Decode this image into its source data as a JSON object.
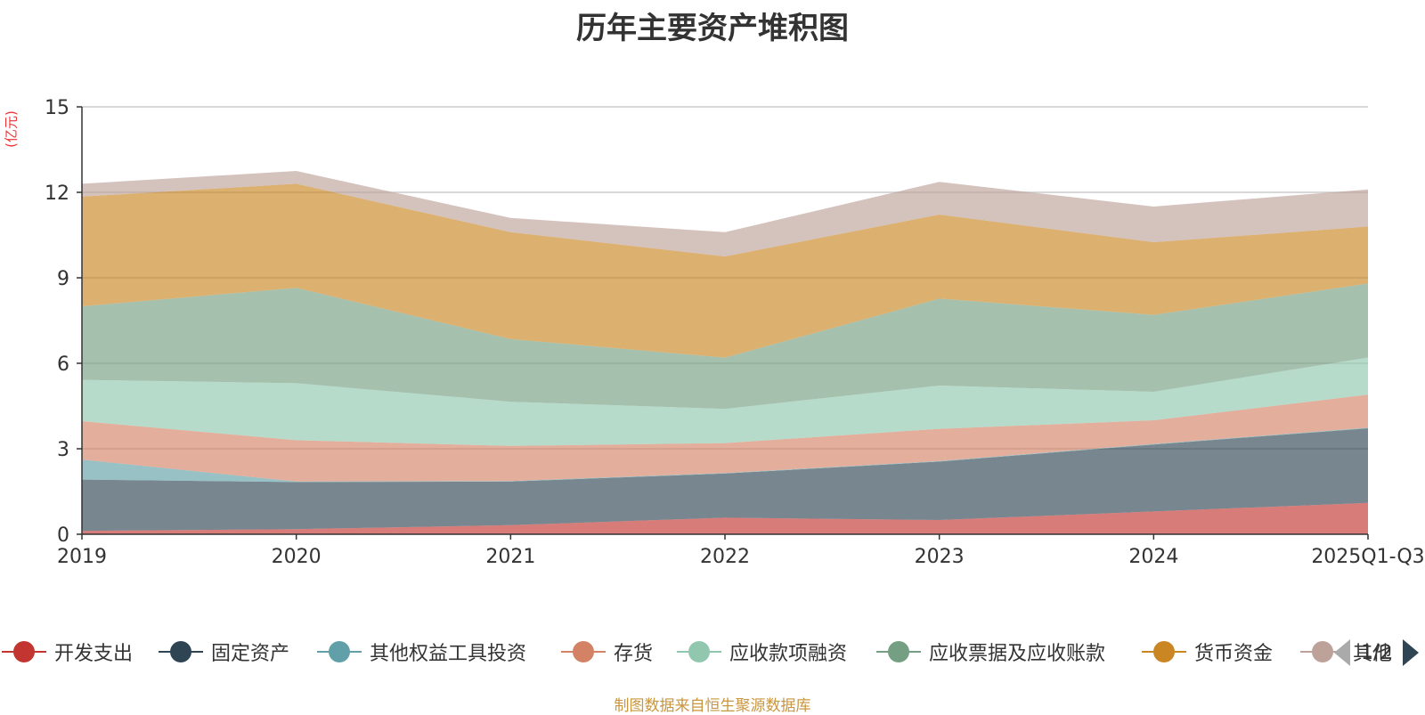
{
  "chart_data": {
    "type": "area",
    "stacked": true,
    "title": "历年主要资产堆积图",
    "ylabel": "(亿元)",
    "xlabel": "",
    "ylim": [
      0,
      15
    ],
    "yticks": [
      0,
      3,
      6,
      9,
      12,
      15
    ],
    "grid": true,
    "categories": [
      "2019",
      "2020",
      "2021",
      "2022",
      "2023",
      "2024",
      "2025Q1-Q3"
    ],
    "series": [
      {
        "name": "开发支出",
        "color": "#c23531",
        "values": [
          0.12,
          0.18,
          0.32,
          0.58,
          0.5,
          0.8,
          1.1
        ]
      },
      {
        "name": "固定资产",
        "color": "#2f4554",
        "values": [
          1.8,
          1.65,
          1.53,
          1.55,
          2.05,
          2.35,
          2.62
        ]
      },
      {
        "name": "其他权益工具投资",
        "color": "#61a0a8",
        "values": [
          0.7,
          0.02,
          0.02,
          0.02,
          0.02,
          0.02,
          0.02
        ]
      },
      {
        "name": "存货",
        "color": "#d48265",
        "values": [
          1.35,
          1.45,
          1.23,
          1.05,
          1.13,
          0.83,
          1.16
        ]
      },
      {
        "name": "应收款项融资",
        "color": "#91c7ae",
        "values": [
          1.45,
          2.0,
          1.55,
          1.2,
          1.52,
          1.0,
          1.3
        ]
      },
      {
        "name": "应收票据及应收账款",
        "color": "#749f83",
        "values": [
          2.58,
          3.35,
          2.2,
          1.8,
          3.05,
          2.7,
          2.6
        ]
      },
      {
        "name": "货币资金",
        "color": "#ca8622",
        "values": [
          3.85,
          3.65,
          3.75,
          3.55,
          2.95,
          2.55,
          2.0
        ]
      },
      {
        "name": "其他",
        "color": "#bda29a",
        "values": [
          0.45,
          0.45,
          0.5,
          0.85,
          1.15,
          1.25,
          1.3
        ]
      }
    ],
    "legend": {
      "position": "bottom",
      "page": "1/2"
    }
  },
  "source_note": "制图数据来自恒生聚源数据库"
}
